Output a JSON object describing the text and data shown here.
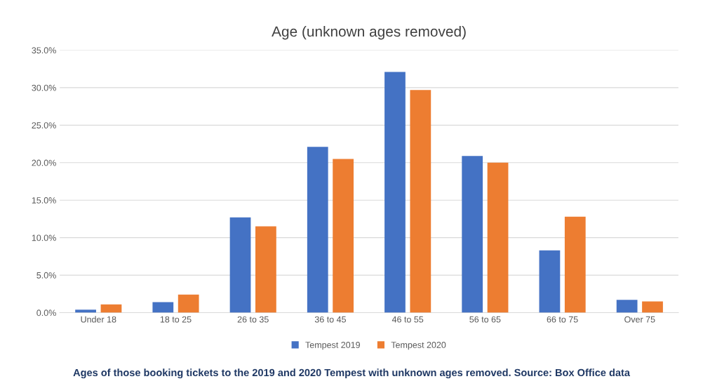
{
  "chart_data": {
    "type": "bar",
    "title": "Age (unknown ages removed)",
    "categories": [
      "Under 18",
      "18 to 25",
      "26 to 35",
      "36 to 45",
      "46 to 55",
      "56 to 65",
      "66 to 75",
      "Over 75"
    ],
    "series": [
      {
        "name": "Tempest 2019",
        "color": "#4472c4",
        "values": [
          0.4,
          1.4,
          12.7,
          22.1,
          32.1,
          20.9,
          8.3,
          1.7
        ]
      },
      {
        "name": "Tempest 2020",
        "color": "#ed7d31",
        "values": [
          1.1,
          2.4,
          11.5,
          20.5,
          29.7,
          20.0,
          12.8,
          1.5
        ]
      }
    ],
    "ylim": [
      0,
      35
    ],
    "yticks": [
      {
        "value": 0,
        "label": "0.0%"
      },
      {
        "value": 5,
        "label": "5.0%"
      },
      {
        "value": 10,
        "label": "10.0%"
      },
      {
        "value": 15,
        "label": "15.0%"
      },
      {
        "value": 20,
        "label": "20.0%"
      },
      {
        "value": 25,
        "label": "25.0%"
      },
      {
        "value": 30,
        "label": "30.0%"
      },
      {
        "value": 35,
        "label": "35.0%"
      }
    ],
    "grid": "y",
    "legend": "bottom",
    "annotations": [
      "Ages of those booking tickets to the 2019 and 2020 Tempest with unknown ages removed. Source: Box Office data"
    ]
  }
}
